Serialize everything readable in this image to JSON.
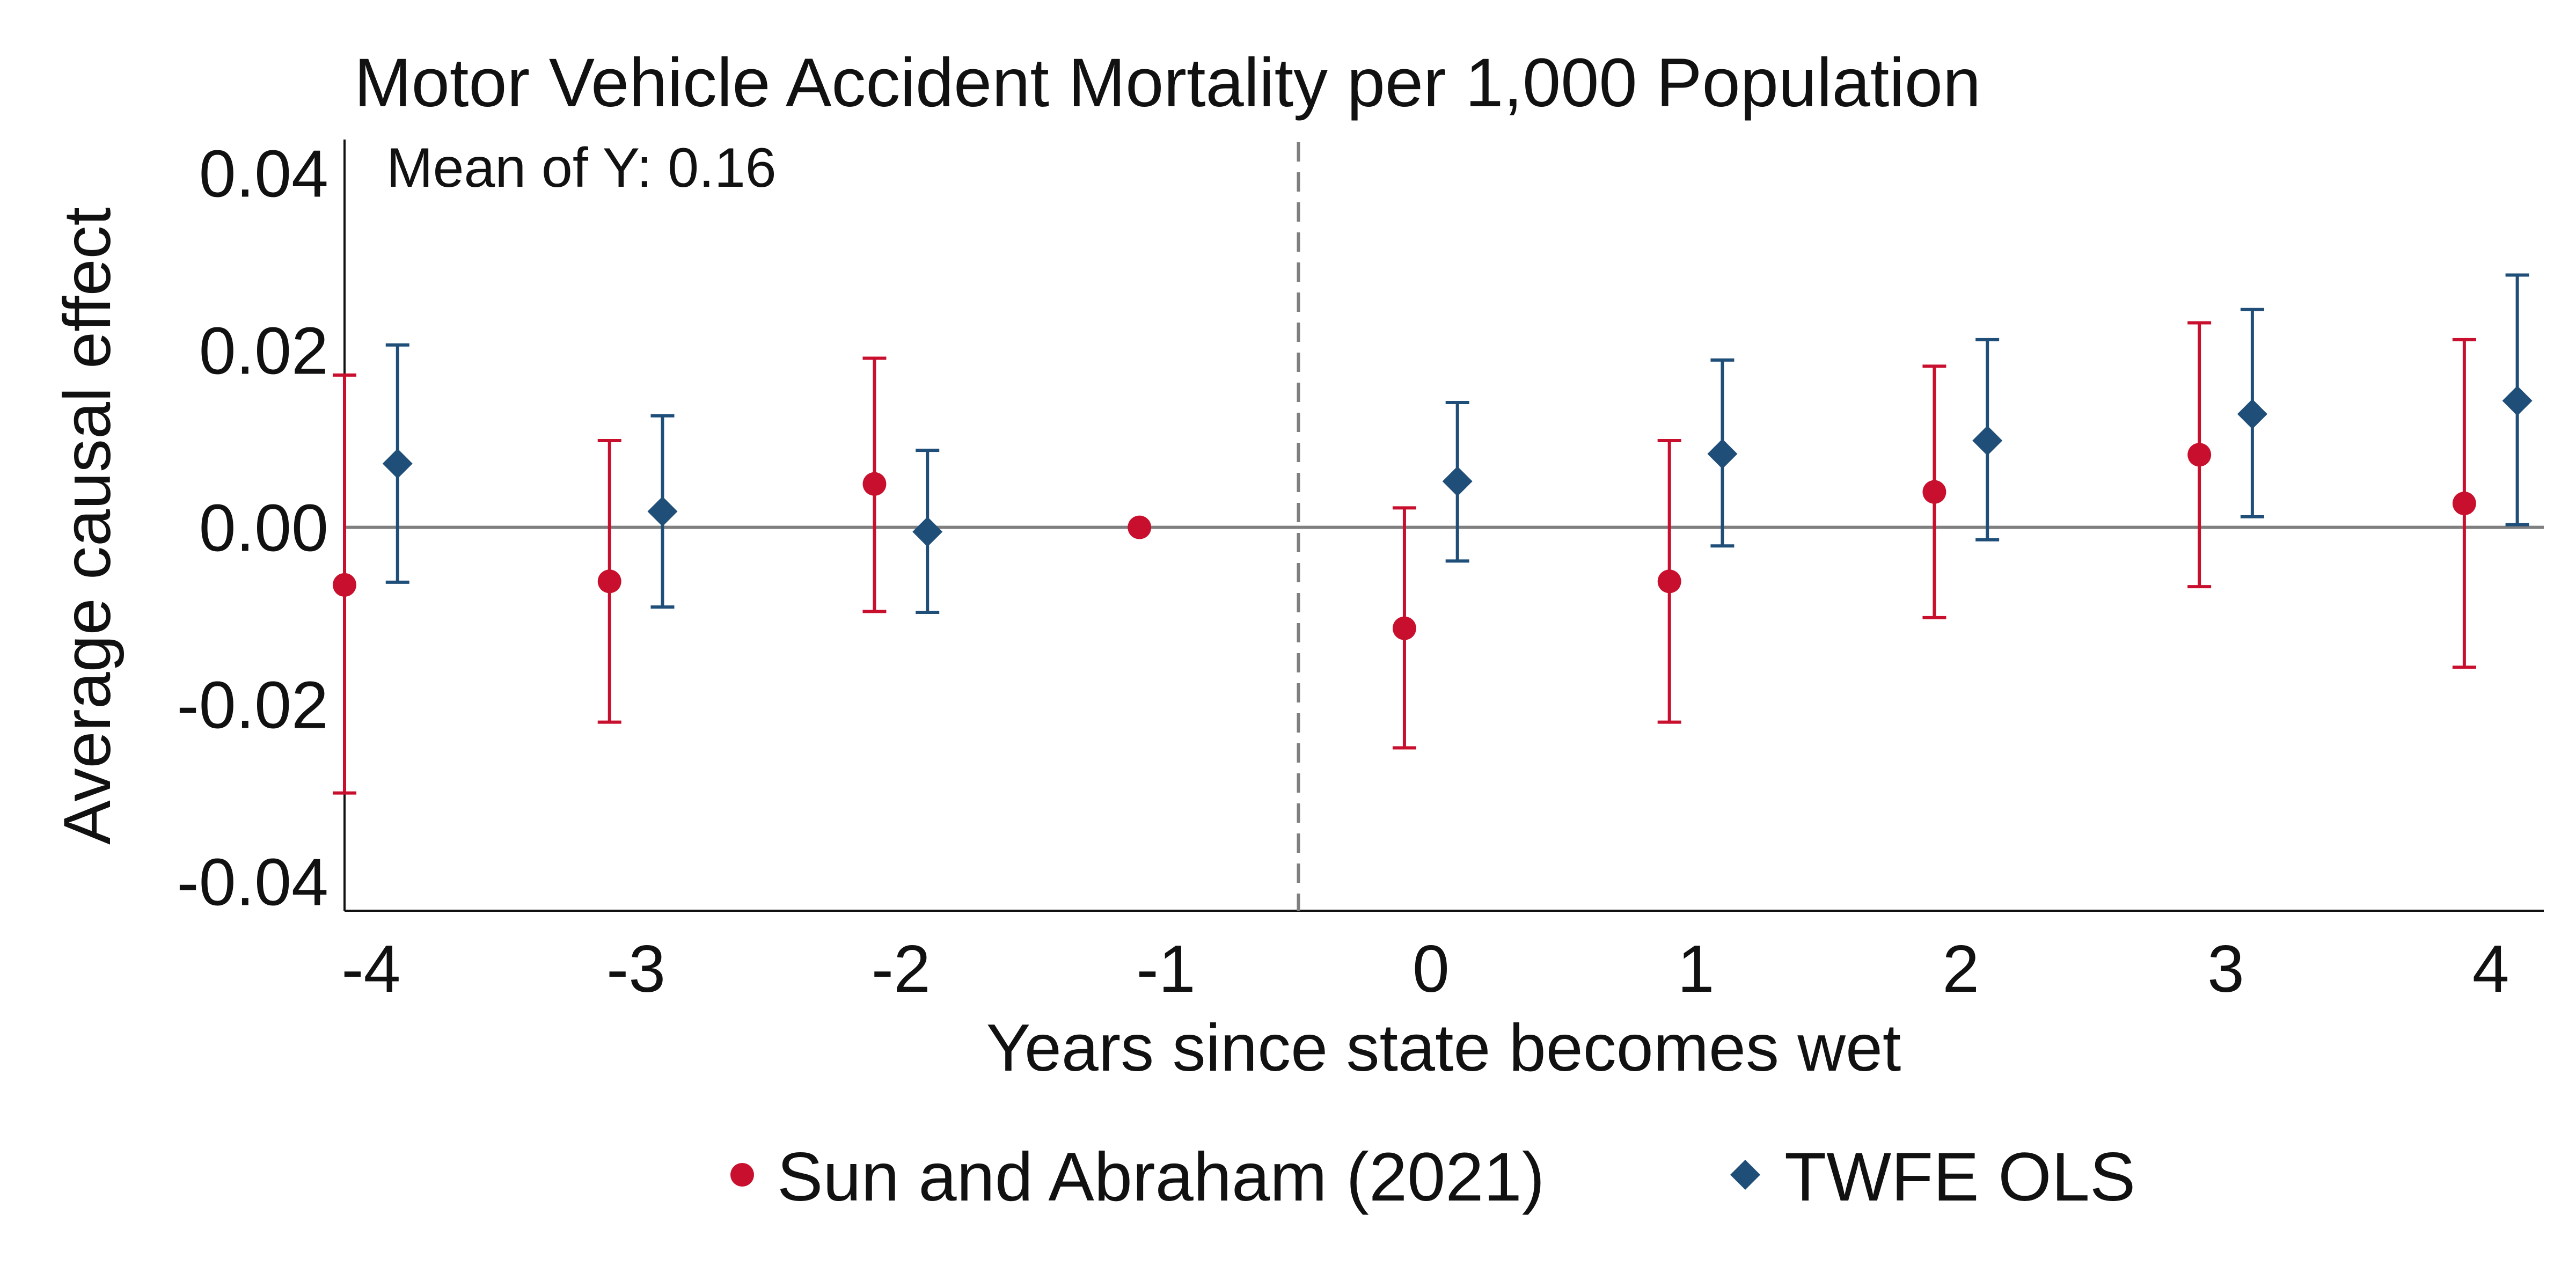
{
  "chart_data": {
    "type": "scatter",
    "title": "Motor Vehicle Accident Mortality per 1,000 Population",
    "annotation": "Mean of Y: 0.16",
    "xlabel": "Years since state becomes wet",
    "ylabel": "Average causal effect",
    "x_ticks": [
      "-4",
      "-3",
      "-2",
      "-1",
      "0",
      "1",
      "2",
      "3",
      "4"
    ],
    "y_ticks": [
      "0.04",
      "0.02",
      "0.00",
      "-0.02",
      "-0.04"
    ],
    "y_tick_values": [
      0.04,
      0.02,
      0.0,
      -0.02,
      -0.04
    ],
    "xlim": [
      -4.1,
      4.2
    ],
    "ylim": [
      -0.0433,
      0.0435
    ],
    "reference_line_y": 0,
    "treatment_line_x": -0.5,
    "grid": false,
    "legend_position": "bottom",
    "series": [
      {
        "name": "Sun and Abraham (2021)",
        "marker": "circle",
        "color": "#c8102e",
        "x_offset": -0.1,
        "points": [
          {
            "x": -4,
            "y": -0.0065,
            "lo": -0.03,
            "hi": 0.0172
          },
          {
            "x": -3,
            "y": -0.0061,
            "lo": -0.022,
            "hi": 0.0098
          },
          {
            "x": -2,
            "y": 0.0049,
            "lo": -0.0095,
            "hi": 0.0191
          },
          {
            "x": -1,
            "y": 0.0,
            "lo": null,
            "hi": null
          },
          {
            "x": 0,
            "y": -0.0114,
            "lo": -0.0249,
            "hi": 0.0022
          },
          {
            "x": 1,
            "y": -0.0061,
            "lo": -0.022,
            "hi": 0.0098
          },
          {
            "x": 2,
            "y": 0.004,
            "lo": -0.0102,
            "hi": 0.0182
          },
          {
            "x": 3,
            "y": 0.0082,
            "lo": -0.0067,
            "hi": 0.0231
          },
          {
            "x": 4,
            "y": 0.0027,
            "lo": -0.0158,
            "hi": 0.0212
          }
        ]
      },
      {
        "name": "TWFE OLS",
        "marker": "diamond",
        "color": "#1f4e79",
        "x_offset": 0.1,
        "points": [
          {
            "x": -4,
            "y": 0.0072,
            "lo": -0.0062,
            "hi": 0.0206
          },
          {
            "x": -3,
            "y": 0.0018,
            "lo": -0.009,
            "hi": 0.0126
          },
          {
            "x": -2,
            "y": -0.0005,
            "lo": -0.0096,
            "hi": 0.0087
          },
          {
            "x": 0,
            "y": 0.0052,
            "lo": -0.0038,
            "hi": 0.0141
          },
          {
            "x": 1,
            "y": 0.0083,
            "lo": -0.0021,
            "hi": 0.0189
          },
          {
            "x": 2,
            "y": 0.0098,
            "lo": -0.0014,
            "hi": 0.0212
          },
          {
            "x": 3,
            "y": 0.0128,
            "lo": 0.0012,
            "hi": 0.0246
          },
          {
            "x": 4,
            "y": 0.0143,
            "lo": 0.0003,
            "hi": 0.0285
          }
        ]
      }
    ]
  }
}
